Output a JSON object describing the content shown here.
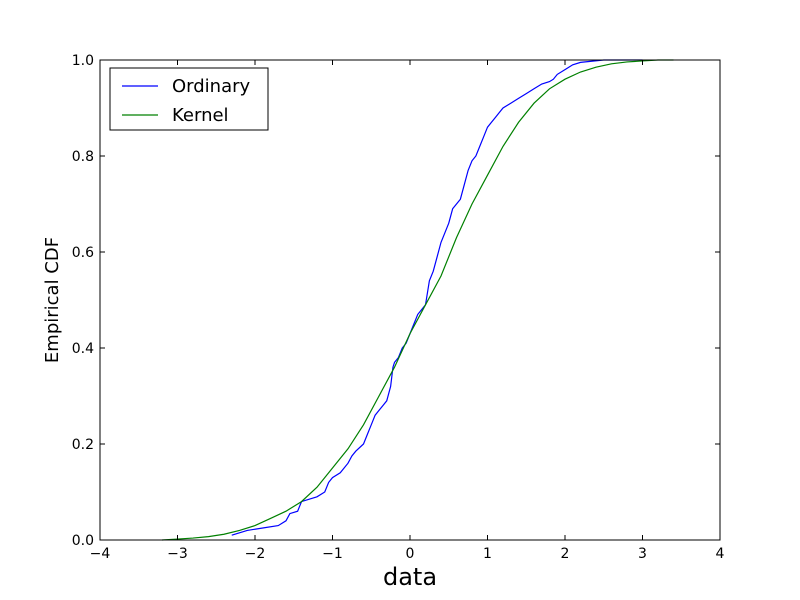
{
  "chart_data": {
    "type": "line",
    "title": "",
    "xlabel": "data",
    "ylabel": "Empirical CDF",
    "xlim": [
      -4,
      4
    ],
    "ylim": [
      0.0,
      1.0
    ],
    "x_ticks": [
      -4,
      -3,
      -2,
      -1,
      0,
      1,
      2,
      3,
      4
    ],
    "x_tick_labels": [
      "−4",
      "−3",
      "−2",
      "−1",
      "0",
      "1",
      "2",
      "3",
      "4"
    ],
    "y_ticks": [
      0.0,
      0.2,
      0.4,
      0.6,
      0.8,
      1.0
    ],
    "y_tick_labels": [
      "0.0",
      "0.2",
      "0.4",
      "0.6",
      "0.8",
      "1.0"
    ],
    "grid": false,
    "legend_position": "top-left",
    "series": [
      {
        "name": "Ordinary",
        "color": "#0000ff",
        "x": [
          -2.3,
          -2.2,
          -2.1,
          -1.9,
          -1.7,
          -1.6,
          -1.55,
          -1.45,
          -1.4,
          -1.3,
          -1.2,
          -1.1,
          -1.05,
          -1.0,
          -0.9,
          -0.8,
          -0.75,
          -0.7,
          -0.6,
          -0.55,
          -0.5,
          -0.45,
          -0.4,
          -0.35,
          -0.3,
          -0.25,
          -0.22,
          -0.2,
          -0.15,
          -0.1,
          -0.05,
          0.0,
          0.05,
          0.1,
          0.15,
          0.2,
          0.25,
          0.3,
          0.35,
          0.4,
          0.45,
          0.5,
          0.55,
          0.6,
          0.65,
          0.7,
          0.75,
          0.8,
          0.85,
          0.9,
          0.95,
          1.0,
          1.05,
          1.1,
          1.15,
          1.2,
          1.3,
          1.4,
          1.5,
          1.6,
          1.7,
          1.8,
          1.85,
          1.9,
          2.0,
          2.1,
          2.2,
          2.5,
          2.8,
          3.0
        ],
        "y": [
          0.01,
          0.015,
          0.02,
          0.025,
          0.03,
          0.04,
          0.055,
          0.06,
          0.08,
          0.085,
          0.09,
          0.1,
          0.12,
          0.13,
          0.14,
          0.16,
          0.175,
          0.185,
          0.2,
          0.22,
          0.24,
          0.26,
          0.27,
          0.28,
          0.29,
          0.32,
          0.36,
          0.37,
          0.38,
          0.4,
          0.41,
          0.43,
          0.45,
          0.47,
          0.48,
          0.49,
          0.54,
          0.56,
          0.59,
          0.62,
          0.64,
          0.66,
          0.69,
          0.7,
          0.71,
          0.74,
          0.77,
          0.79,
          0.8,
          0.82,
          0.84,
          0.86,
          0.87,
          0.88,
          0.89,
          0.9,
          0.91,
          0.92,
          0.93,
          0.94,
          0.95,
          0.955,
          0.96,
          0.97,
          0.98,
          0.99,
          0.995,
          1.0,
          1.0,
          1.0
        ]
      },
      {
        "name": "Kernel",
        "color": "#008000",
        "x": [
          -3.2,
          -3.0,
          -2.8,
          -2.6,
          -2.4,
          -2.2,
          -2.0,
          -1.8,
          -1.6,
          -1.4,
          -1.2,
          -1.0,
          -0.8,
          -0.6,
          -0.4,
          -0.2,
          0.0,
          0.2,
          0.4,
          0.6,
          0.8,
          1.0,
          1.2,
          1.4,
          1.6,
          1.8,
          2.0,
          2.2,
          2.4,
          2.6,
          2.8,
          3.0,
          3.2,
          3.4
        ],
        "y": [
          0.0,
          0.002,
          0.004,
          0.007,
          0.012,
          0.02,
          0.03,
          0.045,
          0.06,
          0.08,
          0.11,
          0.15,
          0.19,
          0.24,
          0.3,
          0.36,
          0.43,
          0.49,
          0.55,
          0.63,
          0.7,
          0.76,
          0.82,
          0.87,
          0.91,
          0.94,
          0.96,
          0.975,
          0.985,
          0.992,
          0.996,
          0.998,
          1.0,
          1.0
        ]
      }
    ]
  }
}
